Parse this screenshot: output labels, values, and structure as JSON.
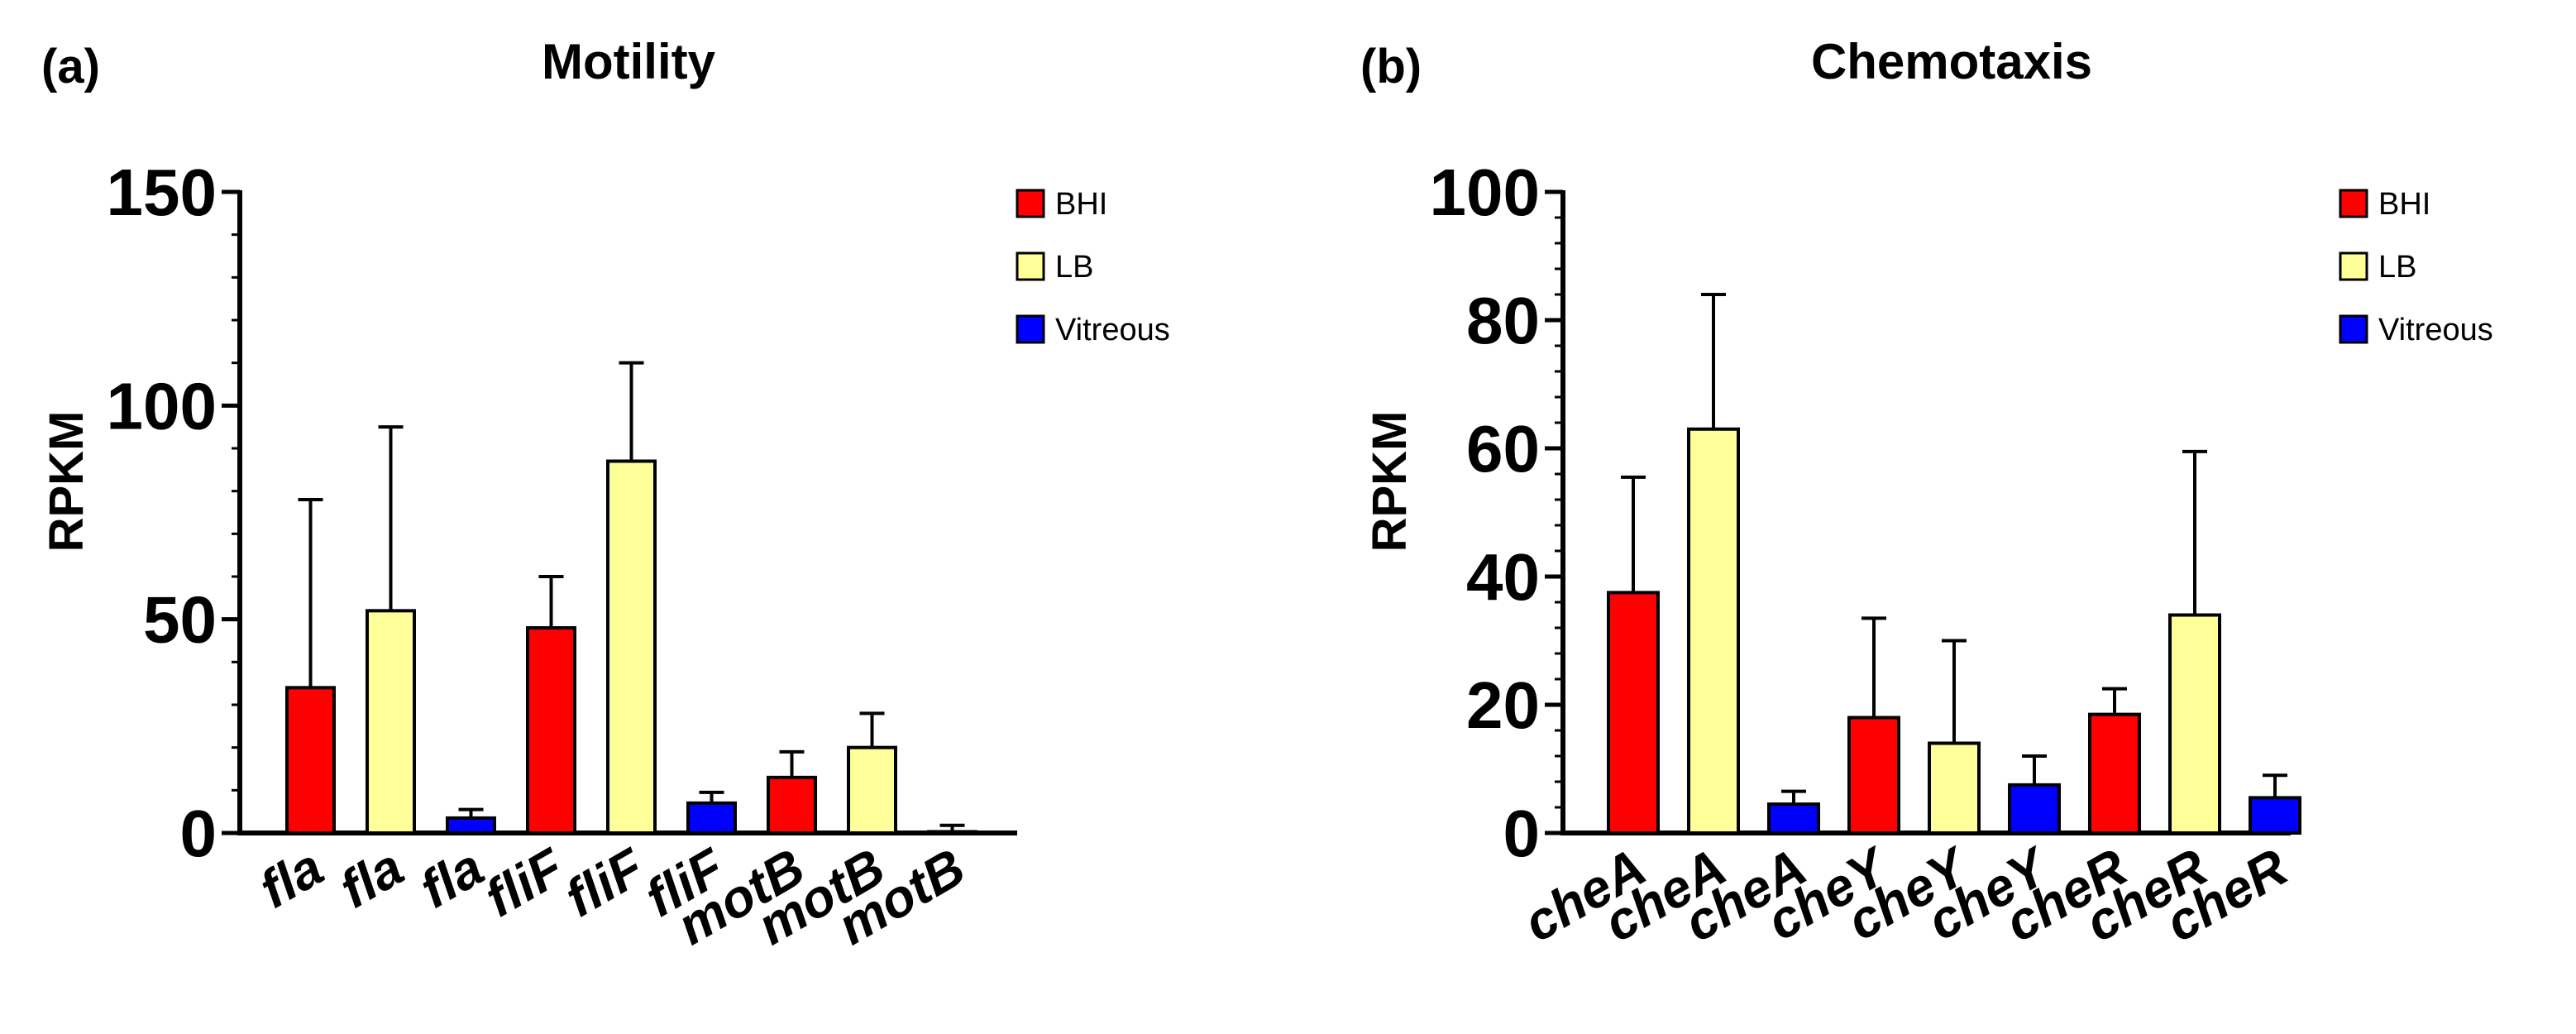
{
  "chart_data": [
    {
      "type": "bar",
      "panel_label": "(a)",
      "title": "Motility",
      "ylabel": "RPKM",
      "xlabel": "",
      "ylim": [
        0,
        150
      ],
      "yticks": [
        0,
        50,
        100,
        150
      ],
      "ytick_labels": [
        "0",
        "50",
        "100",
        "150"
      ],
      "minor_tick_step": 10,
      "categories": [
        "fla",
        "fla",
        "fla",
        "fliF",
        "fliF",
        "fliF",
        "motB",
        "motB",
        "motB"
      ],
      "values": [
        34,
        52,
        3.5,
        48,
        87,
        7,
        13,
        20,
        0.3
      ],
      "errors": [
        44,
        43,
        2,
        12,
        23,
        2.5,
        6,
        8,
        1.5
      ],
      "bar_series": [
        "BHI",
        "LB",
        "Vitreous",
        "BHI",
        "LB",
        "Vitreous",
        "BHI",
        "LB",
        "Vitreous"
      ],
      "legend": [
        {
          "name": "BHI",
          "color": "#ff0000"
        },
        {
          "name": "LB",
          "color": "#ffff99"
        },
        {
          "name": "Vitreous",
          "color": "#0000ff"
        }
      ],
      "legend_position": "top-right"
    },
    {
      "type": "bar",
      "panel_label": "(b)",
      "title": "Chemotaxis",
      "ylabel": "RPKM",
      "xlabel": "",
      "ylim": [
        0,
        100
      ],
      "yticks": [
        0,
        20,
        40,
        60,
        80,
        100
      ],
      "ytick_labels": [
        "0",
        "20",
        "40",
        "60",
        "80",
        "100"
      ],
      "minor_tick_step": 4,
      "categories": [
        "cheA",
        "cheA",
        "cheA",
        "cheY",
        "cheY",
        "cheY",
        "cheR",
        "cheR",
        "cheR"
      ],
      "values": [
        37.5,
        63,
        4.5,
        18,
        14,
        7.5,
        18.5,
        34,
        5.5
      ],
      "errors": [
        18,
        21,
        2,
        15.5,
        16,
        4.5,
        4,
        25.5,
        3.5
      ],
      "bar_series": [
        "BHI",
        "LB",
        "Vitreous",
        "BHI",
        "LB",
        "Vitreous",
        "BHI",
        "LB",
        "Vitreous"
      ],
      "legend": [
        {
          "name": "BHI",
          "color": "#ff0000"
        },
        {
          "name": "LB",
          "color": "#ffff99"
        },
        {
          "name": "Vitreous",
          "color": "#0000ff"
        }
      ],
      "legend_position": "top-right"
    }
  ]
}
